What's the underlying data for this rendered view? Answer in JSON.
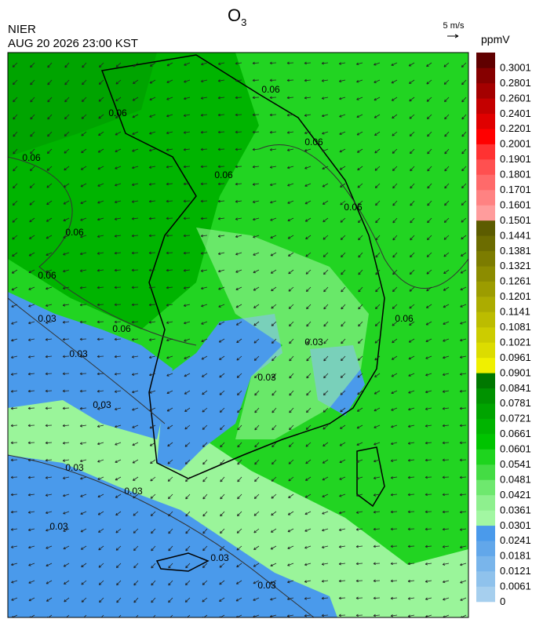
{
  "header": {
    "title": "O",
    "title_subscript": "3",
    "organization": "NIER",
    "datetime": "AUG 20 2026 23:00 KST"
  },
  "vector_scale": "5 m/s",
  "colorbar": {
    "unit": "ppmV",
    "labels": [
      "0",
      "0.0061",
      "0.0121",
      "0.0181",
      "0.0241",
      "0.0301",
      "0.0361",
      "0.0421",
      "0.0481",
      "0.0541",
      "0.0601",
      "0.0661",
      "0.0721",
      "0.0781",
      "0.0841",
      "0.0901",
      "0.0961",
      "0.1021",
      "0.1081",
      "0.1141",
      "0.1201",
      "0.1261",
      "0.1321",
      "0.1381",
      "0.1441",
      "0.1501",
      "0.1601",
      "0.1701",
      "0.1801",
      "0.1901",
      "0.2001",
      "0.2201",
      "0.2401",
      "0.2601",
      "0.2801",
      "0.3001"
    ],
    "colors": [
      "#a6cfee",
      "#8fc2ec",
      "#79b5eb",
      "#62a7ea",
      "#4a9aeb",
      "#a2f7a2",
      "#8ef08e",
      "#6ee86e",
      "#44dc44",
      "#1ed41e",
      "#00c400",
      "#00b400",
      "#00a400",
      "#009200",
      "#007800",
      "#f0f000",
      "#dcdc00",
      "#cccc00",
      "#bcbc00",
      "#acac00",
      "#9c9c00",
      "#8c8c00",
      "#7c7c00",
      "#6c6c00",
      "#5c5c00",
      "#ff9c9c",
      "#ff8282",
      "#ff6a6a",
      "#ff5050",
      "#ff3232",
      "#ff0000",
      "#e00000",
      "#c40000",
      "#a40000",
      "#860000",
      "#600000"
    ]
  },
  "contour_labels": [
    "0.06",
    "0.06",
    "0.06",
    "0.06",
    "0.06",
    "0.06",
    "0.06",
    "0.06",
    "0.06",
    "0.06",
    "0.03",
    "0.03",
    "0.03",
    "0.03",
    "0.03",
    "0.03",
    "0.03",
    "0.03",
    "0.03",
    "0.03"
  ]
}
